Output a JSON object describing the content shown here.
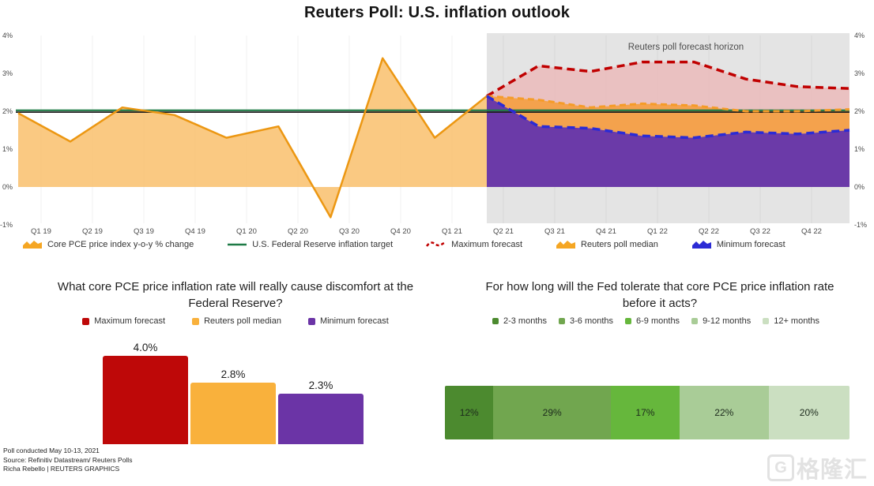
{
  "title": "Reuters Poll: U.S. inflation outlook",
  "chart_data": [
    {
      "type": "area",
      "title": "Reuters Poll: U.S. inflation outlook",
      "x": [
        "Q1 19",
        "Q2 19",
        "Q3 19",
        "Q4 19",
        "Q1 20",
        "Q2 20",
        "Q3 20",
        "Q4 20",
        "Q1 21",
        "Q2 21",
        "Q3 21",
        "Q4 21",
        "Q1 22",
        "Q2 22",
        "Q3 22",
        "Q4 22"
      ],
      "y_ticks": [
        "4%",
        "3%",
        "2%",
        "1%",
        "0%",
        "-1%"
      ],
      "y_tick_values": [
        4,
        3,
        2,
        1,
        0,
        -1
      ],
      "ylim": [
        -1.3,
        4.3
      ],
      "grid": "vertical",
      "forecast_region_label": "Reuters poll forecast horizon",
      "forecast_bg": "#e4e4e4",
      "fed_target_value": 2,
      "series": [
        {
          "name": "Core PCE price index y-o-y % change",
          "role": "history",
          "line_color": "#ec9712",
          "fill_color": "#f9c06c",
          "quarters": [
            "Q1 19",
            "Q2 19",
            "Q3 19",
            "Q4 19",
            "Q1 20",
            "Q2 20",
            "Q3 20",
            "Q4 20",
            "Q1 21",
            "Q2 21"
          ],
          "values": [
            1.95,
            1.2,
            2.1,
            1.9,
            1.3,
            1.6,
            -0.8,
            3.4,
            1.3,
            2.4
          ]
        },
        {
          "name": "U.S. Federal Reserve inflation target",
          "role": "target-line",
          "line_color": "#1e7a46",
          "value": 2
        },
        {
          "name": "Maximum forecast",
          "role": "forecast-max",
          "line_color": "#c00000",
          "fill_color": "#ebbbbb",
          "quarters": [
            "Q2 21",
            "Q3 21",
            "Q4 21",
            "Q1 22",
            "Q2 22",
            "Q3 22",
            "Q4 22"
          ],
          "start_value": 2.4,
          "values": [
            3.2,
            3.05,
            3.3,
            3.3,
            2.85,
            2.65,
            2.6
          ]
        },
        {
          "name": "Reuters poll median",
          "role": "forecast-median",
          "line_color": "#f59c28",
          "fill_color": "#f4a24d",
          "quarters": [
            "Q2 21",
            "Q3 21",
            "Q4 21",
            "Q1 22",
            "Q2 22",
            "Q3 22",
            "Q4 22"
          ],
          "start_value": 2.4,
          "values": [
            2.3,
            2.1,
            2.2,
            2.15,
            2.0,
            2.0,
            2.05
          ]
        },
        {
          "name": "Minimum forecast",
          "role": "forecast-min",
          "line_color": "#2b2bd5",
          "fill_color": "#6b3aa8",
          "quarters": [
            "Q2 21",
            "Q3 21",
            "Q4 21",
            "Q1 22",
            "Q2 22",
            "Q3 22",
            "Q4 22"
          ],
          "start_value": 2.4,
          "values": [
            1.6,
            1.55,
            1.35,
            1.3,
            1.45,
            1.4,
            1.5
          ]
        }
      ],
      "legend": [
        {
          "label": "Core PCE price index y-o-y % change",
          "swatch": "area",
          "color": "#f5a623"
        },
        {
          "label": "U.S. Federal Reserve inflation target",
          "swatch": "line",
          "color": "#1e7a46"
        },
        {
          "label": "Maximum forecast",
          "swatch": "dash",
          "color": "#c00000"
        },
        {
          "label": "Reuters poll median",
          "swatch": "area",
          "color": "#f5a623"
        },
        {
          "label": "Minimum forecast",
          "swatch": "area",
          "color": "#2b2bd5"
        }
      ]
    },
    {
      "type": "bar",
      "title": "What core PCE price inflation rate will really cause discomfort at the Federal Reserve?",
      "categories": [
        "Maximum forecast",
        "Reuters poll median",
        "Minimum forecast"
      ],
      "values": [
        4.0,
        2.8,
        2.3
      ],
      "labels": [
        "4.0%",
        "2.8%",
        "2.3%"
      ],
      "colors": [
        "#be0808",
        "#f9b13c",
        "#6b34a6"
      ],
      "ylim": [
        0,
        4.3
      ]
    },
    {
      "type": "bar",
      "subtype": "stacked-horizontal",
      "title": "For how long will the Fed tolerate that core PCE price inflation rate before it acts?",
      "categories": [
        "2-3 months",
        "3-6 months",
        "6-9 months",
        "9-12 months",
        "12+ months"
      ],
      "values": [
        12,
        29,
        17,
        22,
        20
      ],
      "labels": [
        "12%",
        "29%",
        "17%",
        "22%",
        "20%"
      ],
      "colors": [
        "#4c8a2f",
        "#71a64f",
        "#66b73c",
        "#a9cc97",
        "#cbdfc1"
      ]
    }
  ],
  "footer": {
    "line1": "Poll conducted May 10-13, 2021",
    "line2": "Source: Refinitiv Datastream/ Reuters Polls",
    "line3": "Richa Rebello | REUTERS GRAPHICS"
  },
  "watermark": {
    "logo_letter": "G",
    "text": "格隆汇"
  }
}
